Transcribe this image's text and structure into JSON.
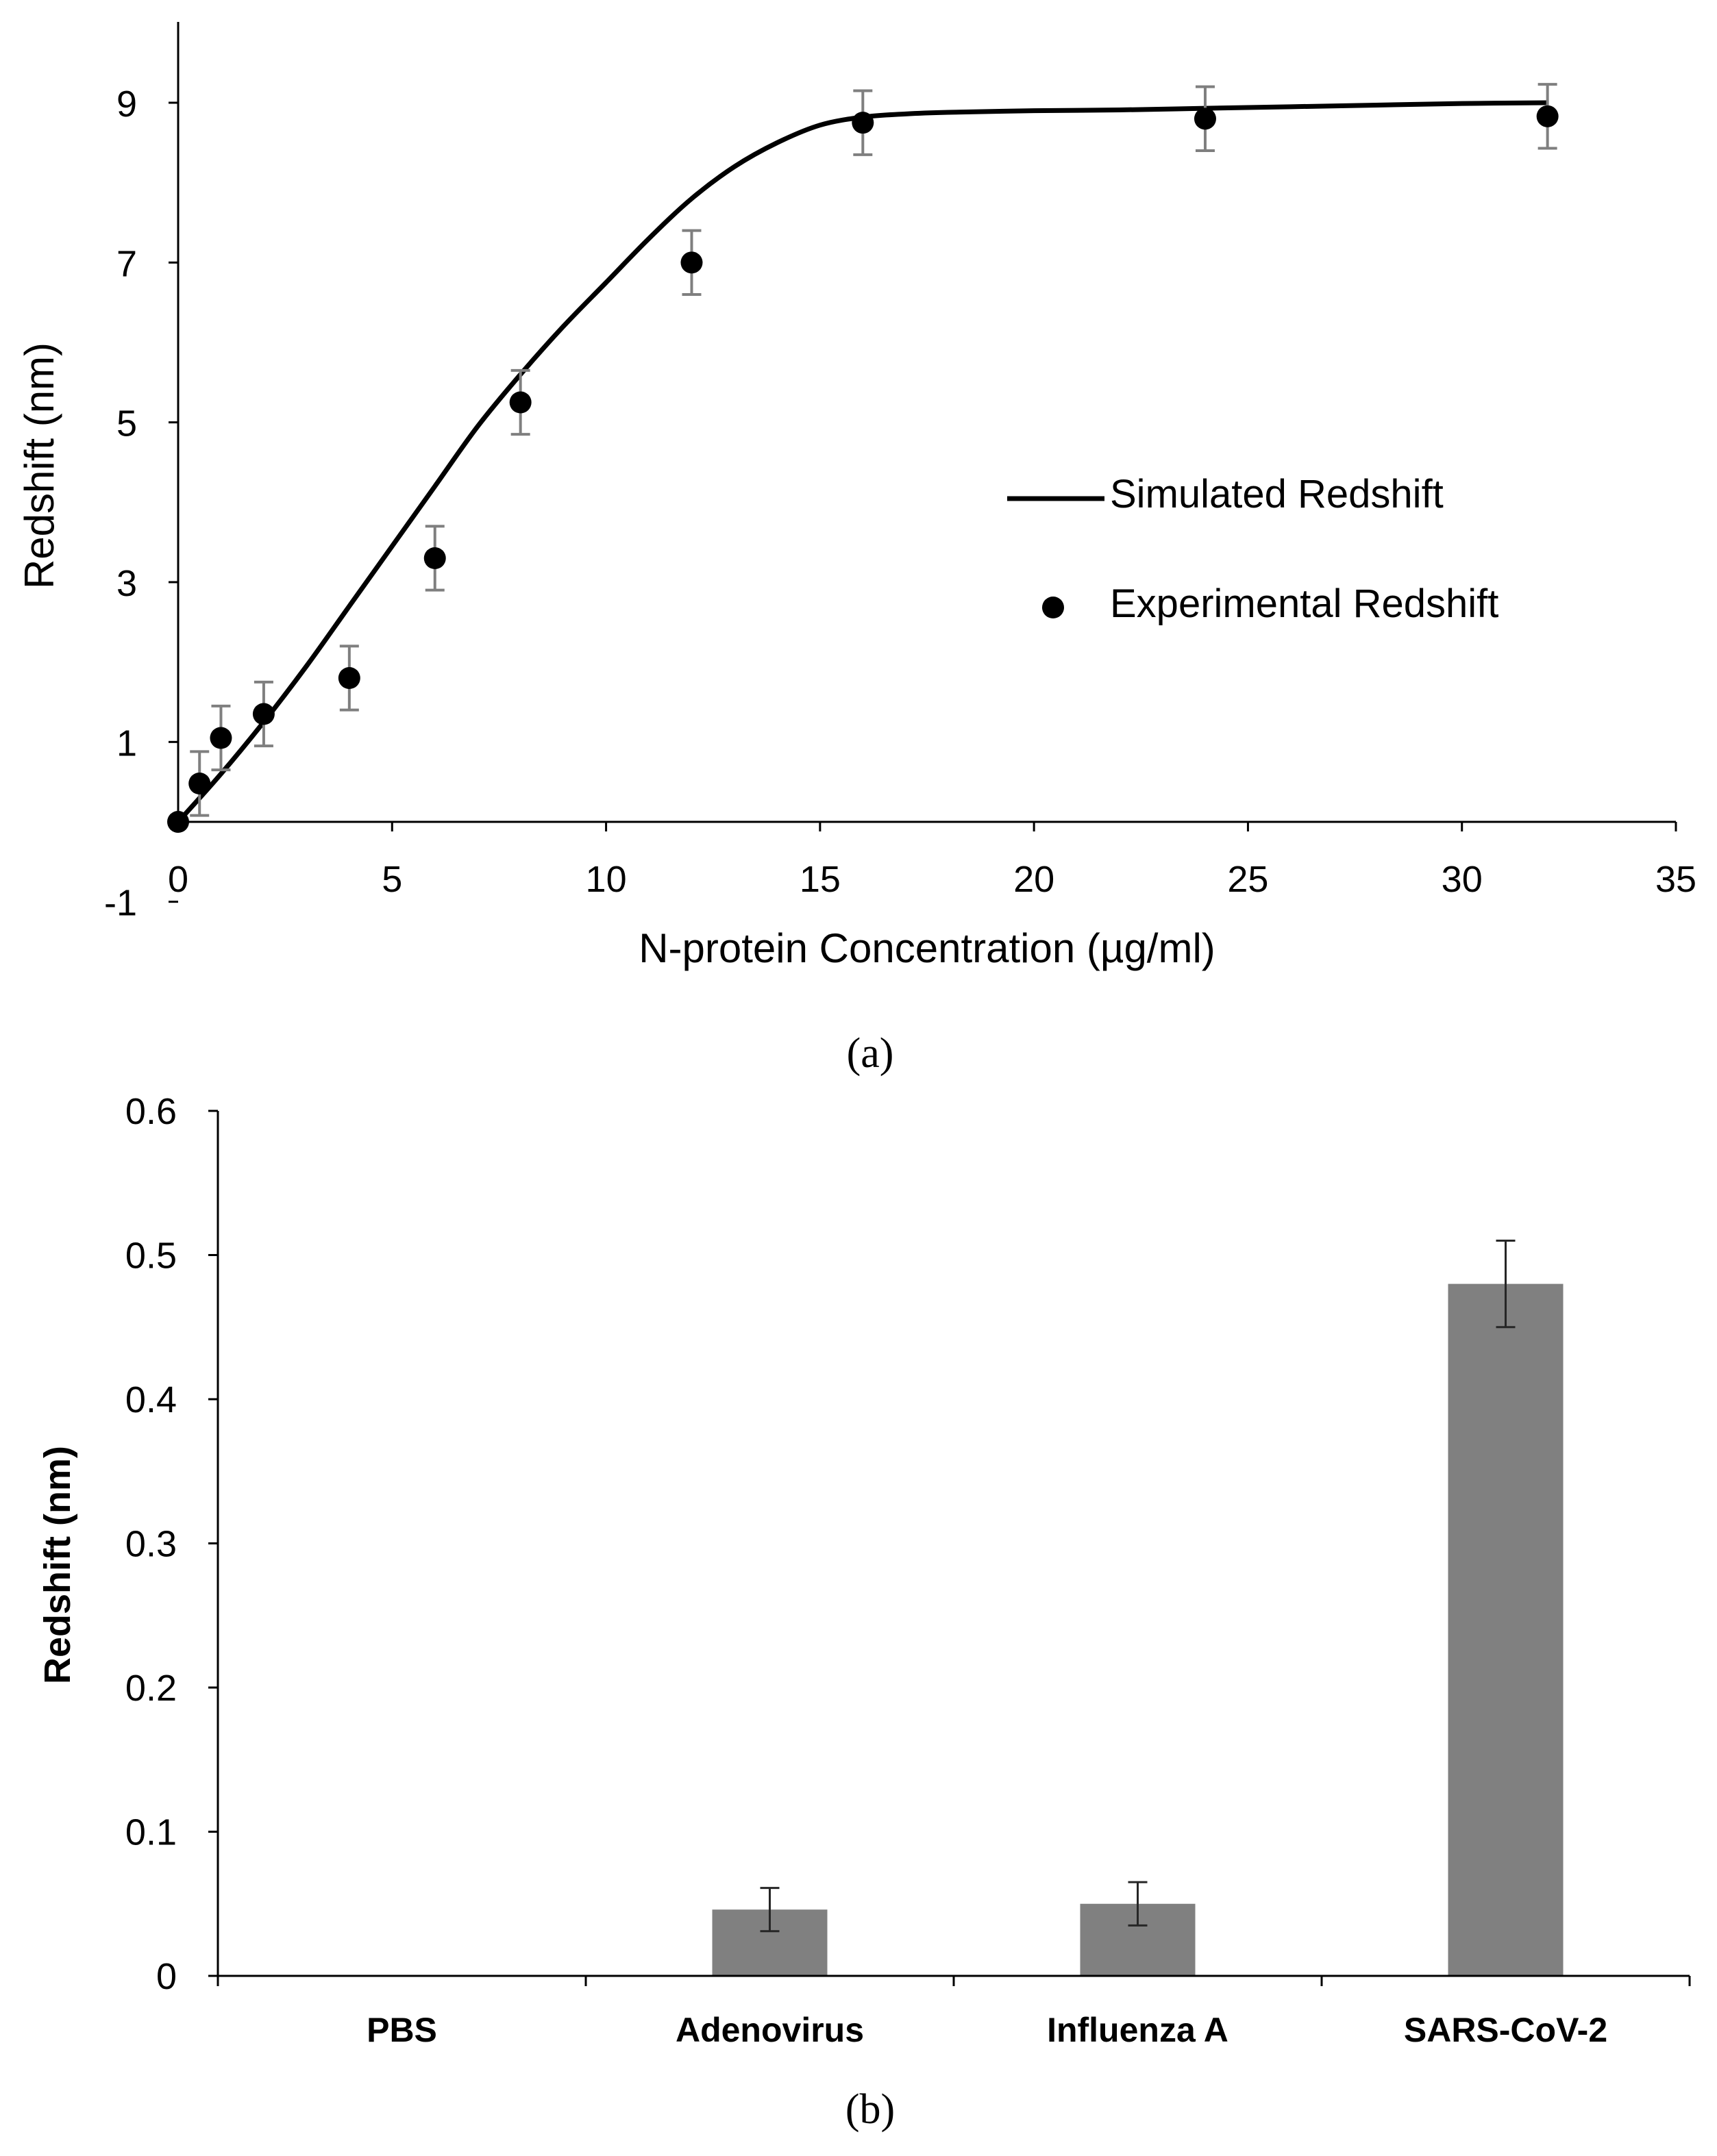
{
  "chart_data": [
    {
      "type": "scatter",
      "panel_label": "(a)",
      "title": "",
      "xlabel": "N-protein Concentration (µg/ml)",
      "ylabel": "Redshift (nm)",
      "xlim": [
        0,
        35
      ],
      "ylim": [
        -1,
        10
      ],
      "x_ticks": [
        0,
        5,
        10,
        15,
        20,
        25,
        30,
        35
      ],
      "y_ticks": [
        -1,
        1,
        3,
        5,
        7,
        9
      ],
      "legend_position": "right",
      "series": [
        {
          "name": "Simulated Redshift",
          "kind": "line",
          "color": "#000000",
          "x": [
            0,
            1,
            2,
            3,
            4,
            5,
            6,
            7,
            8,
            9,
            10,
            11,
            12,
            13,
            14,
            15,
            16,
            17,
            18,
            20,
            22,
            24,
            26,
            28,
            30,
            32
          ],
          "y": [
            0,
            0.6,
            1.25,
            1.95,
            2.7,
            3.45,
            4.2,
            4.95,
            5.6,
            6.2,
            6.75,
            7.3,
            7.8,
            8.2,
            8.5,
            8.72,
            8.82,
            8.86,
            8.88,
            8.9,
            8.91,
            8.93,
            8.95,
            8.97,
            8.99,
            9.0
          ]
        },
        {
          "name": "Experimental Redshift",
          "kind": "scatter",
          "color": "#000000",
          "x": [
            0,
            0.5,
            1,
            2,
            4,
            6,
            8,
            12,
            16,
            24,
            32
          ],
          "y": [
            0,
            0.48,
            1.05,
            1.35,
            1.8,
            3.3,
            5.25,
            7.0,
            8.75,
            8.8,
            8.83
          ],
          "error": [
            0,
            0.4,
            0.4,
            0.4,
            0.4,
            0.4,
            0.4,
            0.4,
            0.4,
            0.4,
            0.4
          ]
        }
      ]
    },
    {
      "type": "bar",
      "panel_label": "(b)",
      "title": "",
      "xlabel": "",
      "ylabel": "Redshift (nm)",
      "ylim": [
        0,
        0.6
      ],
      "y_ticks": [
        "0",
        "0.1",
        "0.2",
        "0.3",
        "0.4",
        "0.5",
        "0.6"
      ],
      "categories": [
        "PBS",
        "Adenovirus",
        "Influenza A",
        "SARS-CoV-2"
      ],
      "values": [
        0,
        0.046,
        0.05,
        0.48
      ],
      "errors": [
        0,
        0.015,
        0.015,
        0.03
      ],
      "bar_color": "#808080"
    }
  ]
}
